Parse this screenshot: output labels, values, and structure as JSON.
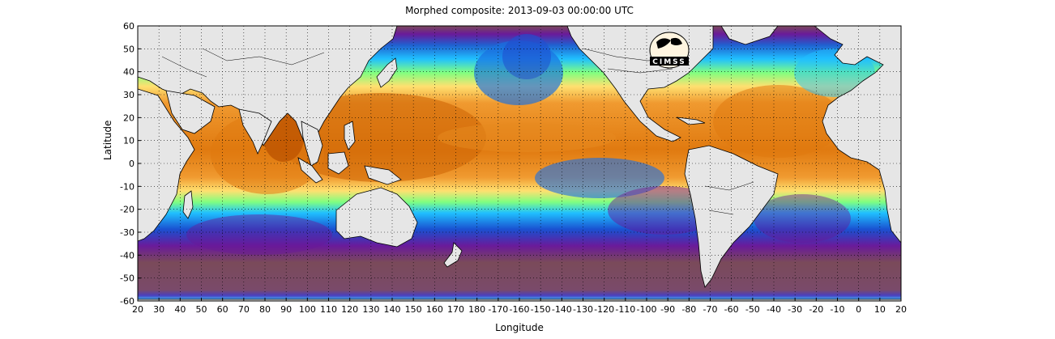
{
  "title": "Morphed composite: 2013-09-03 00:00:00 UTC",
  "chart_data": {
    "type": "heatmap",
    "title": "Morphed composite: 2013-09-03 00:00:00 UTC",
    "xlabel": "Longitude",
    "ylabel": "Latitude",
    "xlim": [
      20,
      380
    ],
    "ylim": [
      -60,
      60
    ],
    "grid": true,
    "x_ticks": [
      "20",
      "30",
      "40",
      "50",
      "60",
      "70",
      "80",
      "90",
      "100",
      "110",
      "120",
      "130",
      "140",
      "150",
      "160",
      "170",
      "180",
      "-170",
      "-160",
      "-150",
      "-140",
      "-130",
      "-120",
      "-110",
      "-100",
      "-90",
      "-80",
      "-70",
      "-60",
      "-50",
      "-40",
      "-30",
      "-20",
      "-10",
      "0",
      "10",
      "20"
    ],
    "y_ticks": [
      "60",
      "50",
      "40",
      "30",
      "20",
      "10",
      "0",
      "-10",
      "-20",
      "-30",
      "-40",
      "-50",
      "-60"
    ]
  },
  "logo": {
    "text": "CIMSS"
  },
  "colors": {
    "background": "#ffffff",
    "land": "#e6e6e6",
    "border": "#000000",
    "very_moist": "#b85000",
    "moist": "#f09a30",
    "mid_moist": "#ffe070",
    "mid": "#80ff80",
    "mid_dry": "#20c0ff",
    "dry": "#1a50d0",
    "very_dry": "#6a1a9a",
    "driest": "#7a4a5a"
  }
}
